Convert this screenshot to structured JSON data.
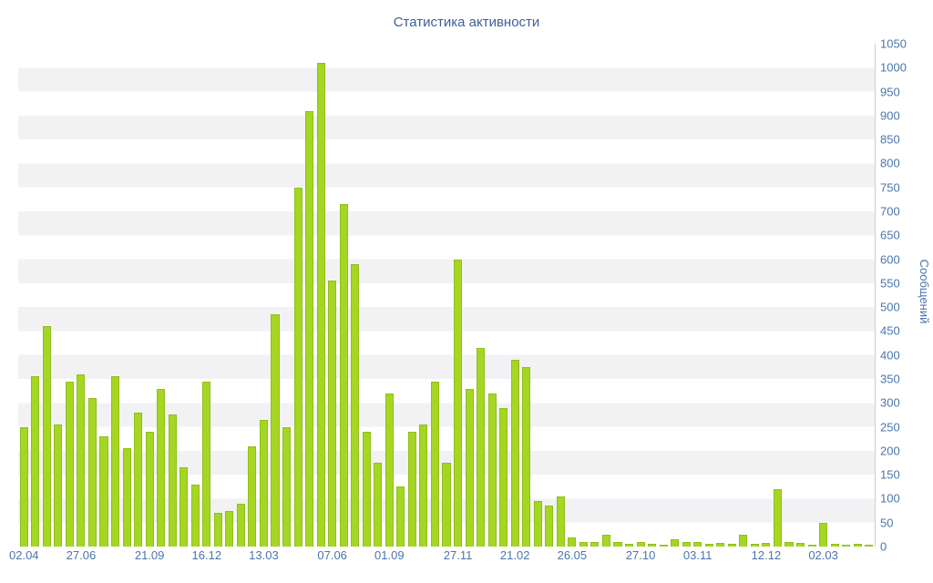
{
  "title": "Статистика активности",
  "colors": {
    "bar": "#a5d622",
    "bar_border": "#8fbf1d",
    "stripe": "#f2f2f4",
    "axis_text": "#4a76ac",
    "title_text": "#3d5f9e"
  },
  "chart_data": {
    "type": "bar",
    "title": "Статистика активности",
    "xlabel": "",
    "ylabel": "Сообщений",
    "ylim": [
      0,
      1050
    ],
    "y_tick_step": 50,
    "grid": "horizontal-stripes",
    "legend": "none",
    "y_axis_side": "right",
    "values": [
      250,
      355,
      460,
      255,
      345,
      360,
      310,
      230,
      355,
      205,
      280,
      240,
      330,
      275,
      165,
      130,
      345,
      70,
      75,
      90,
      210,
      265,
      485,
      250,
      750,
      910,
      1010,
      555,
      715,
      590,
      240,
      175,
      320,
      125,
      240,
      255,
      345,
      175,
      600,
      330,
      415,
      320,
      290,
      390,
      375,
      95,
      85,
      105,
      20,
      10,
      10,
      25,
      10,
      5,
      10,
      5,
      3,
      15,
      10,
      10,
      5,
      8,
      5,
      25,
      5,
      8,
      120,
      10,
      8,
      3,
      50,
      5,
      3,
      5,
      3
    ],
    "x_tick_labels": [
      {
        "index": 0,
        "label": "02.04"
      },
      {
        "index": 5,
        "label": "27.06"
      },
      {
        "index": 11,
        "label": "21.09"
      },
      {
        "index": 16,
        "label": "16.12"
      },
      {
        "index": 21,
        "label": "13.03"
      },
      {
        "index": 27,
        "label": "07.06"
      },
      {
        "index": 32,
        "label": "01.09"
      },
      {
        "index": 38,
        "label": "27.11"
      },
      {
        "index": 43,
        "label": "21.02"
      },
      {
        "index": 48,
        "label": "26.05"
      },
      {
        "index": 54,
        "label": "27.10"
      },
      {
        "index": 59,
        "label": "03.11"
      },
      {
        "index": 65,
        "label": "12.12"
      },
      {
        "index": 70,
        "label": "02.03"
      }
    ]
  }
}
